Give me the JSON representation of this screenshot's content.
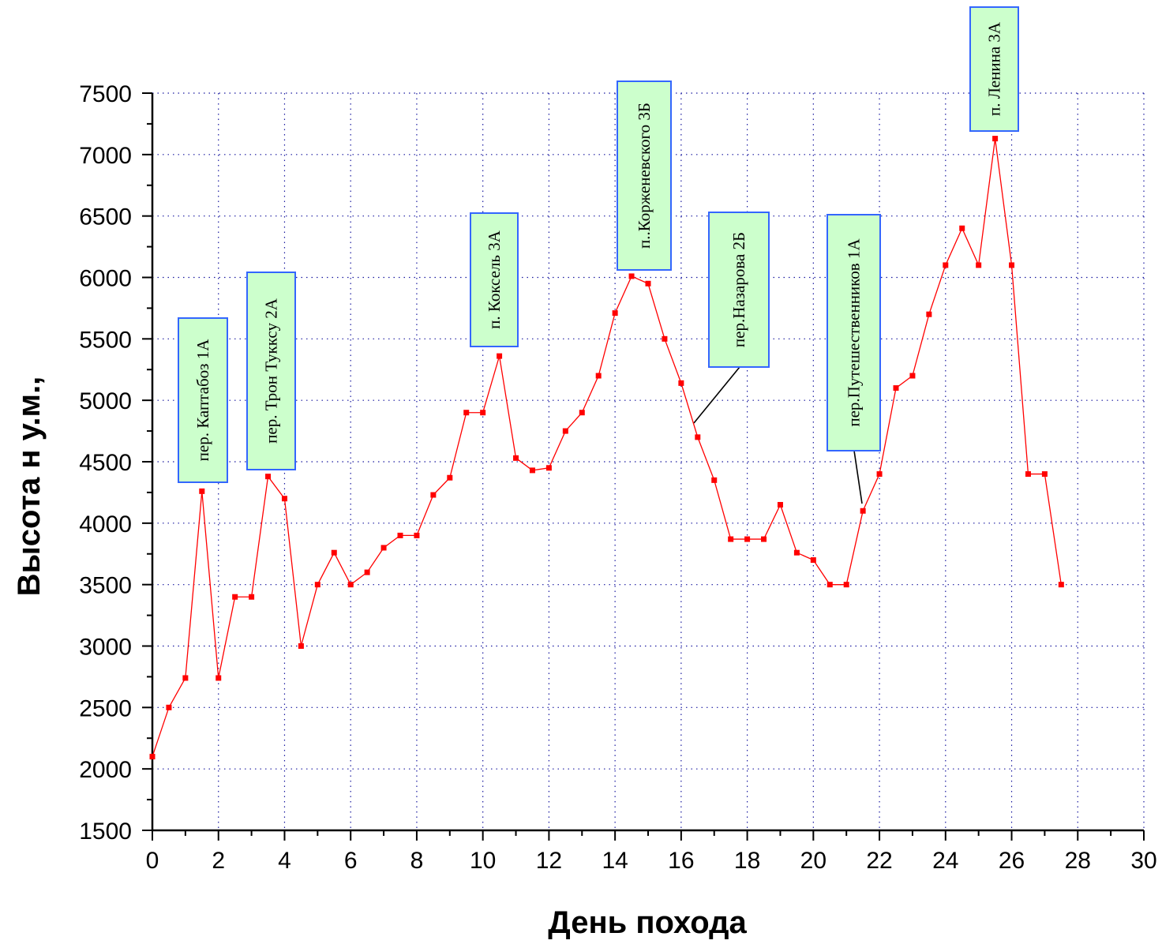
{
  "chart_data": {
    "type": "line",
    "title": "",
    "xlabel": "День похода",
    "ylabel": "Высота н у.м.,",
    "xlim": [
      0,
      30
    ],
    "ylim": [
      1500,
      7500
    ],
    "x_ticks": [
      "0",
      "2",
      "4",
      "6",
      "8",
      "10",
      "12",
      "14",
      "16",
      "18",
      "20",
      "22",
      "24",
      "26",
      "28",
      "30"
    ],
    "y_ticks": [
      "1500",
      "2000",
      "2500",
      "3000",
      "3500",
      "4000",
      "4500",
      "5000",
      "5500",
      "6000",
      "6500",
      "7000",
      "7500"
    ],
    "grid": true,
    "colors": {
      "line": "#ff0000",
      "marker": "#ff0000",
      "grid": "#1a1aa0",
      "box_fill": "#ccffcc",
      "box_border": "#3366ff"
    },
    "series": [
      {
        "x": [
          0,
          0.5,
          1,
          1.5,
          2,
          2.5,
          3,
          3.5,
          4,
          4.5,
          5,
          5.5,
          6,
          6.5,
          7,
          7.5,
          8,
          8.5,
          9,
          9.5,
          10,
          10.5,
          11,
          11.5,
          12,
          12.5,
          13,
          13.5,
          14,
          14.5,
          15,
          15.5,
          16,
          16.5,
          17,
          17.5,
          18,
          18.5,
          19,
          19.5,
          20,
          20.5,
          21,
          21.5,
          22,
          22.5,
          23,
          23.5,
          24,
          24.5,
          25,
          25.5,
          26,
          26.5,
          27,
          27.5
        ],
        "y": [
          2100,
          2500,
          2740,
          4260,
          2740,
          3400,
          3400,
          4380,
          4200,
          3000,
          3500,
          3760,
          3500,
          3600,
          3800,
          3900,
          3900,
          4230,
          4370,
          4900,
          4900,
          5360,
          4530,
          4430,
          4450,
          4750,
          4900,
          5200,
          5710,
          6010,
          5950,
          5500,
          5140,
          4700,
          4350,
          3870,
          3870,
          3870,
          4150,
          3760,
          3700,
          3500,
          3500,
          4100,
          4400,
          5100,
          5200,
          5700,
          6100,
          6400,
          6100,
          7130,
          6100,
          4400,
          4400,
          3500
        ]
      }
    ],
    "annotations": [
      {
        "text": "пер. Каптабоз 1А",
        "point": [
          1.5,
          4260
        ]
      },
      {
        "text": "пер. Трон Тукксу 2А",
        "point": [
          3.5,
          4380
        ]
      },
      {
        "text": "п. Коксель 3А",
        "point": [
          10.5,
          5360
        ]
      },
      {
        "text": "п..Корженевского 3Б",
        "point": [
          14.5,
          6010
        ]
      },
      {
        "text": "пер.Назарова 2Б",
        "point": [
          16.5,
          4700
        ]
      },
      {
        "text": "пер.Путешественников 1А",
        "point": [
          21.5,
          4100
        ]
      },
      {
        "text": "п. Ленина 3А",
        "point": [
          25.5,
          7130
        ]
      }
    ]
  }
}
